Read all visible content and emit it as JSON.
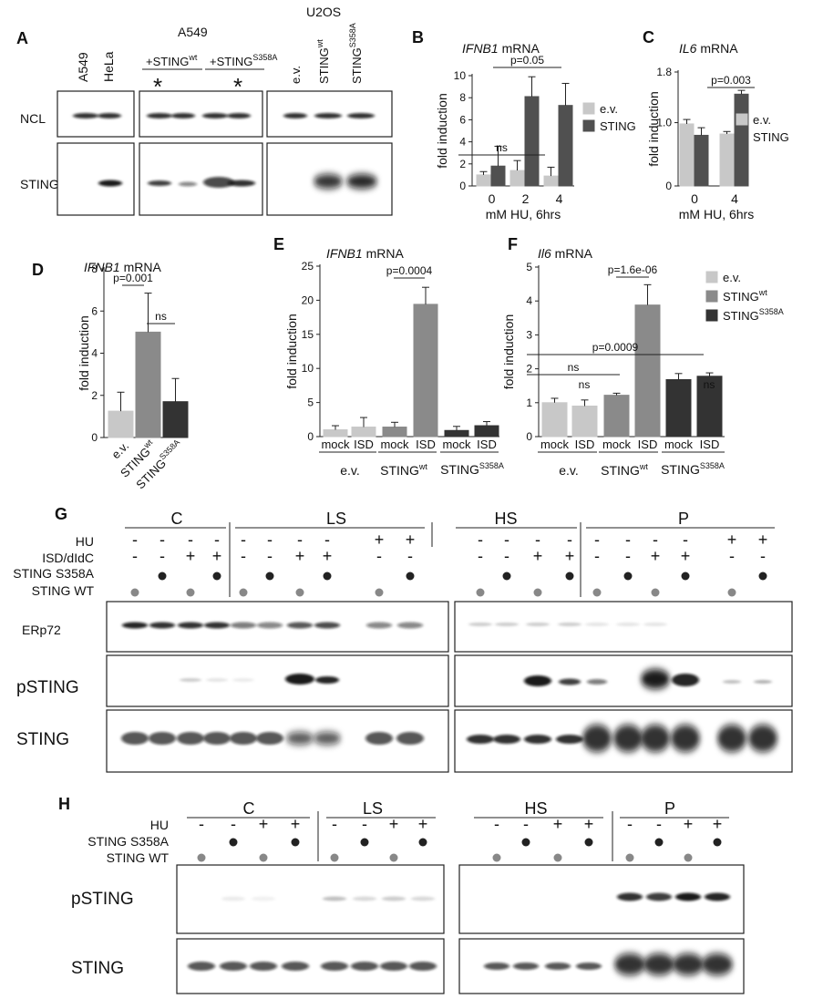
{
  "panels": {
    "A": "A",
    "B": "B",
    "C": "C",
    "D": "D",
    "E": "E",
    "F": "F",
    "G": "G",
    "H": "H"
  },
  "blotA": {
    "a549_header": "A549",
    "u2os_header": "U2OS",
    "lanes1": [
      "A549",
      "HeLa"
    ],
    "sting_base": "+STING",
    "wt_sup": "wt",
    "s358a_sup": "S358A",
    "asterisk": "*",
    "lanes3": [
      "e.v.",
      "STING",
      "STING"
    ],
    "lanes3_sup": [
      "",
      "wt",
      "S358A"
    ],
    "rows": [
      "NCL",
      "STING"
    ]
  },
  "chart_data": [
    {
      "id": "B",
      "type": "bar",
      "title_gene": "IFNB1",
      "title_rest": " mRNA",
      "ylabel": "fold induction",
      "xlabel": "mM HU, 6hrs",
      "categories": [
        "0",
        "2",
        "4"
      ],
      "ylim": [
        0,
        10
      ],
      "yticks": [
        "0",
        "2",
        "4",
        "6",
        "8",
        "10"
      ],
      "series": [
        {
          "name": "e.v.",
          "color": "#c8c8c8",
          "values": [
            1.0,
            1.4,
            0.9
          ],
          "errors": [
            0.3,
            0.9,
            0.8
          ]
        },
        {
          "name": "STING",
          "color": "#505050",
          "values": [
            1.8,
            8.1,
            7.3
          ],
          "errors": [
            1.8,
            1.8,
            2.0
          ]
        }
      ],
      "annotations": [
        "p=0.05",
        "ns"
      ]
    },
    {
      "id": "C",
      "type": "bar",
      "title_gene": "IL6",
      "title_rest": " mRNA",
      "ylabel": "fold induction",
      "xlabel": "mM HU, 6hrs",
      "categories": [
        "0",
        "4"
      ],
      "ylim": [
        0,
        1.8
      ],
      "yticks": [
        "0",
        "1.0",
        "1.8"
      ],
      "series": [
        {
          "name": "e.v.",
          "color": "#c8c8c8",
          "values": [
            0.98,
            0.82
          ],
          "errors": [
            0.07,
            0.04
          ]
        },
        {
          "name": "STING",
          "color": "#505050",
          "values": [
            0.8,
            1.45
          ],
          "errors": [
            0.12,
            0.06
          ]
        }
      ],
      "annotations": [
        "p=0.003"
      ]
    },
    {
      "id": "D",
      "type": "bar",
      "title_gene": "IFNB1",
      "title_rest": " mRNA",
      "ylabel": "fold induction",
      "categories": [
        "e.v.",
        "STING",
        "STING"
      ],
      "category_sup": [
        "",
        "wt",
        "S358A"
      ],
      "ylim": [
        0,
        8
      ],
      "yticks": [
        "0",
        "2",
        "4",
        "6",
        "8"
      ],
      "values": [
        1.25,
        5.0,
        1.7
      ],
      "errors": [
        0.9,
        1.85,
        1.1
      ],
      "colors": [
        "#c8c8c8",
        "#8a8a8a",
        "#333333"
      ],
      "annotations": [
        "p=0.001",
        "ns"
      ]
    },
    {
      "id": "E",
      "type": "bar",
      "title_gene": "IFNB1",
      "title_rest": " mRNA",
      "ylabel": "fold induction",
      "categories": [
        "mock",
        "ISD",
        "mock",
        "ISD",
        "mock",
        "ISD"
      ],
      "groups": [
        "e.v.",
        "STING",
        "STING"
      ],
      "group_sup": [
        "",
        "wt",
        "S358A"
      ],
      "ylim": [
        0,
        25
      ],
      "yticks": [
        "0",
        "5",
        "10",
        "15",
        "20",
        "25"
      ],
      "values": [
        1.0,
        1.4,
        1.4,
        19.4,
        0.9,
        1.6
      ],
      "errors": [
        0.6,
        1.4,
        0.7,
        2.5,
        0.6,
        0.6
      ],
      "colors": [
        "#c8c8c8",
        "#c8c8c8",
        "#8a8a8a",
        "#8a8a8a",
        "#333333",
        "#333333"
      ],
      "annotations": [
        "p=0.0004"
      ]
    },
    {
      "id": "F",
      "type": "bar",
      "title_gene": "Il6",
      "title_rest": " mRNA",
      "ylabel": "fold induction",
      "categories": [
        "mock",
        "ISD",
        "mock",
        "ISD",
        "mock",
        "ISD"
      ],
      "groups": [
        "e.v.",
        "STING",
        "STING"
      ],
      "group_sup": [
        "",
        "wt",
        "S358A"
      ],
      "ylim": [
        0,
        5
      ],
      "yticks": [
        "0",
        "1",
        "2",
        "3",
        "4",
        "5"
      ],
      "values": [
        1.0,
        0.9,
        1.22,
        3.88,
        1.68,
        1.78
      ],
      "errors": [
        0.13,
        0.18,
        0.06,
        0.6,
        0.18,
        0.1
      ],
      "colors": [
        "#c8c8c8",
        "#c8c8c8",
        "#8a8a8a",
        "#8a8a8a",
        "#333333",
        "#333333"
      ],
      "legend": [
        {
          "name": "e.v.",
          "color": "#c8c8c8",
          "sup": ""
        },
        {
          "name": "STING",
          "color": "#8a8a8a",
          "sup": "wt"
        },
        {
          "name": "STING",
          "color": "#333333",
          "sup": "S358A"
        }
      ],
      "annotations": [
        "p=1.6e-06",
        "p=0.0009",
        "ns",
        "ns",
        "ns"
      ]
    }
  ],
  "blotG": {
    "fractions": [
      "C",
      "LS",
      "HS",
      "P"
    ],
    "row_labels": [
      "HU",
      "ISD/dIdC",
      "STING S358A",
      "STING WT"
    ],
    "left_signs": {
      "HU": [
        "-",
        "-",
        "-",
        "-",
        "-",
        "-",
        "-",
        "-",
        "+",
        "+"
      ],
      "ISD": [
        "-",
        "-",
        "+",
        "+",
        "-",
        "-",
        "+",
        "+",
        "-",
        "-"
      ]
    },
    "right_signs": {
      "HU": [
        "-",
        "-",
        "-",
        "-",
        "-",
        "-",
        "-",
        "-",
        "+",
        "+"
      ],
      "ISD": [
        "-",
        "-",
        "+",
        "+",
        "-",
        "-",
        "+",
        "+",
        "-",
        "-"
      ]
    },
    "blots": [
      "ERp72",
      "pSTING",
      "STING"
    ]
  },
  "blotH": {
    "fractions": [
      "C",
      "LS",
      "HS",
      "P"
    ],
    "row_labels": [
      "HU",
      "STING S358A",
      "STING WT"
    ],
    "signs": [
      "-",
      "-",
      "+",
      "+",
      "-",
      "-",
      "+",
      "+"
    ],
    "blots": [
      "pSTING",
      "STING"
    ]
  }
}
